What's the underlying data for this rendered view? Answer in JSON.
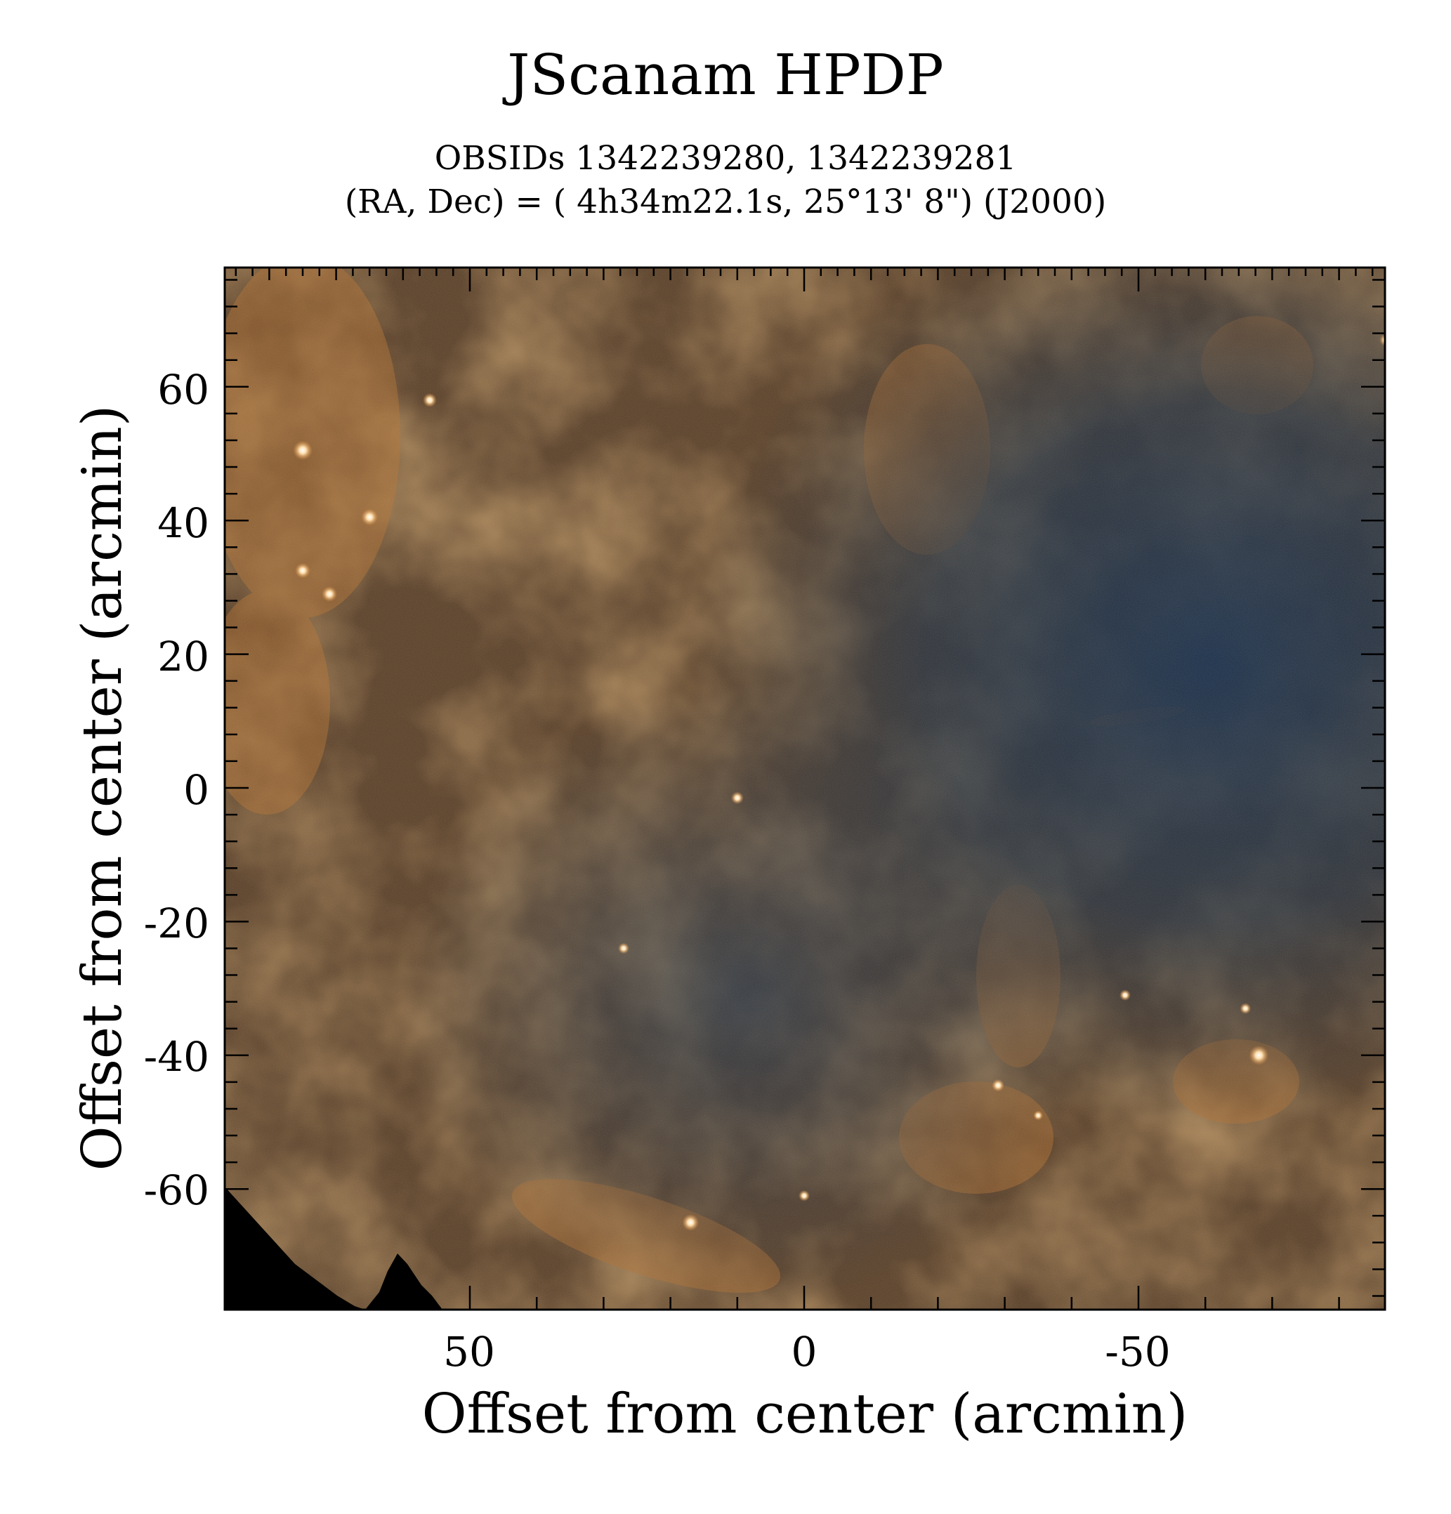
{
  "figure": {
    "title": "JScanam HPDP",
    "subtitle_line1": "OBSIDs 1342239280, 1342239281",
    "subtitle_line2": "(RA, Dec) = ( 4h34m22.1s, 25°13' 8\") (J2000)",
    "xlabel": "Offset from center (arcmin)",
    "ylabel": "Offset from center (arcmin)",
    "x_ticks": [
      "50",
      "0",
      "-50"
    ],
    "y_ticks": [
      "60",
      "40",
      "20",
      "0",
      "-20",
      "-40",
      "-60"
    ]
  },
  "image": {
    "description_colors": {
      "dust": "#a86a2c",
      "dust_bright": "#c88440",
      "void": "#1f3550",
      "frame": "#000000"
    },
    "xlim": [
      87,
      -87
    ],
    "ylim": [
      -78,
      78
    ],
    "point_sources": [
      {
        "x": 75,
        "y": 50.5,
        "bright": 1.0
      },
      {
        "x": 65,
        "y": 40.5,
        "bright": 0.8
      },
      {
        "x": 75,
        "y": 32.5,
        "bright": 0.7
      },
      {
        "x": 71,
        "y": 29,
        "bright": 0.7
      },
      {
        "x": 56,
        "y": 58,
        "bright": 0.6
      },
      {
        "x": 10,
        "y": -1.5,
        "bright": 0.5
      },
      {
        "x": 17,
        "y": -65,
        "bright": 0.8
      },
      {
        "x": -68,
        "y": -40,
        "bright": 1.0
      },
      {
        "x": -29,
        "y": -44.5,
        "bright": 0.5
      },
      {
        "x": -48,
        "y": -31,
        "bright": 0.4
      },
      {
        "x": -66,
        "y": -33,
        "bright": 0.4
      },
      {
        "x": 27,
        "y": -24,
        "bright": 0.4
      },
      {
        "x": -35,
        "y": -49,
        "bright": 0.3
      },
      {
        "x": 0,
        "y": -61,
        "bright": 0.4
      },
      {
        "x": -87,
        "y": 67,
        "bright": 0.5
      }
    ]
  }
}
